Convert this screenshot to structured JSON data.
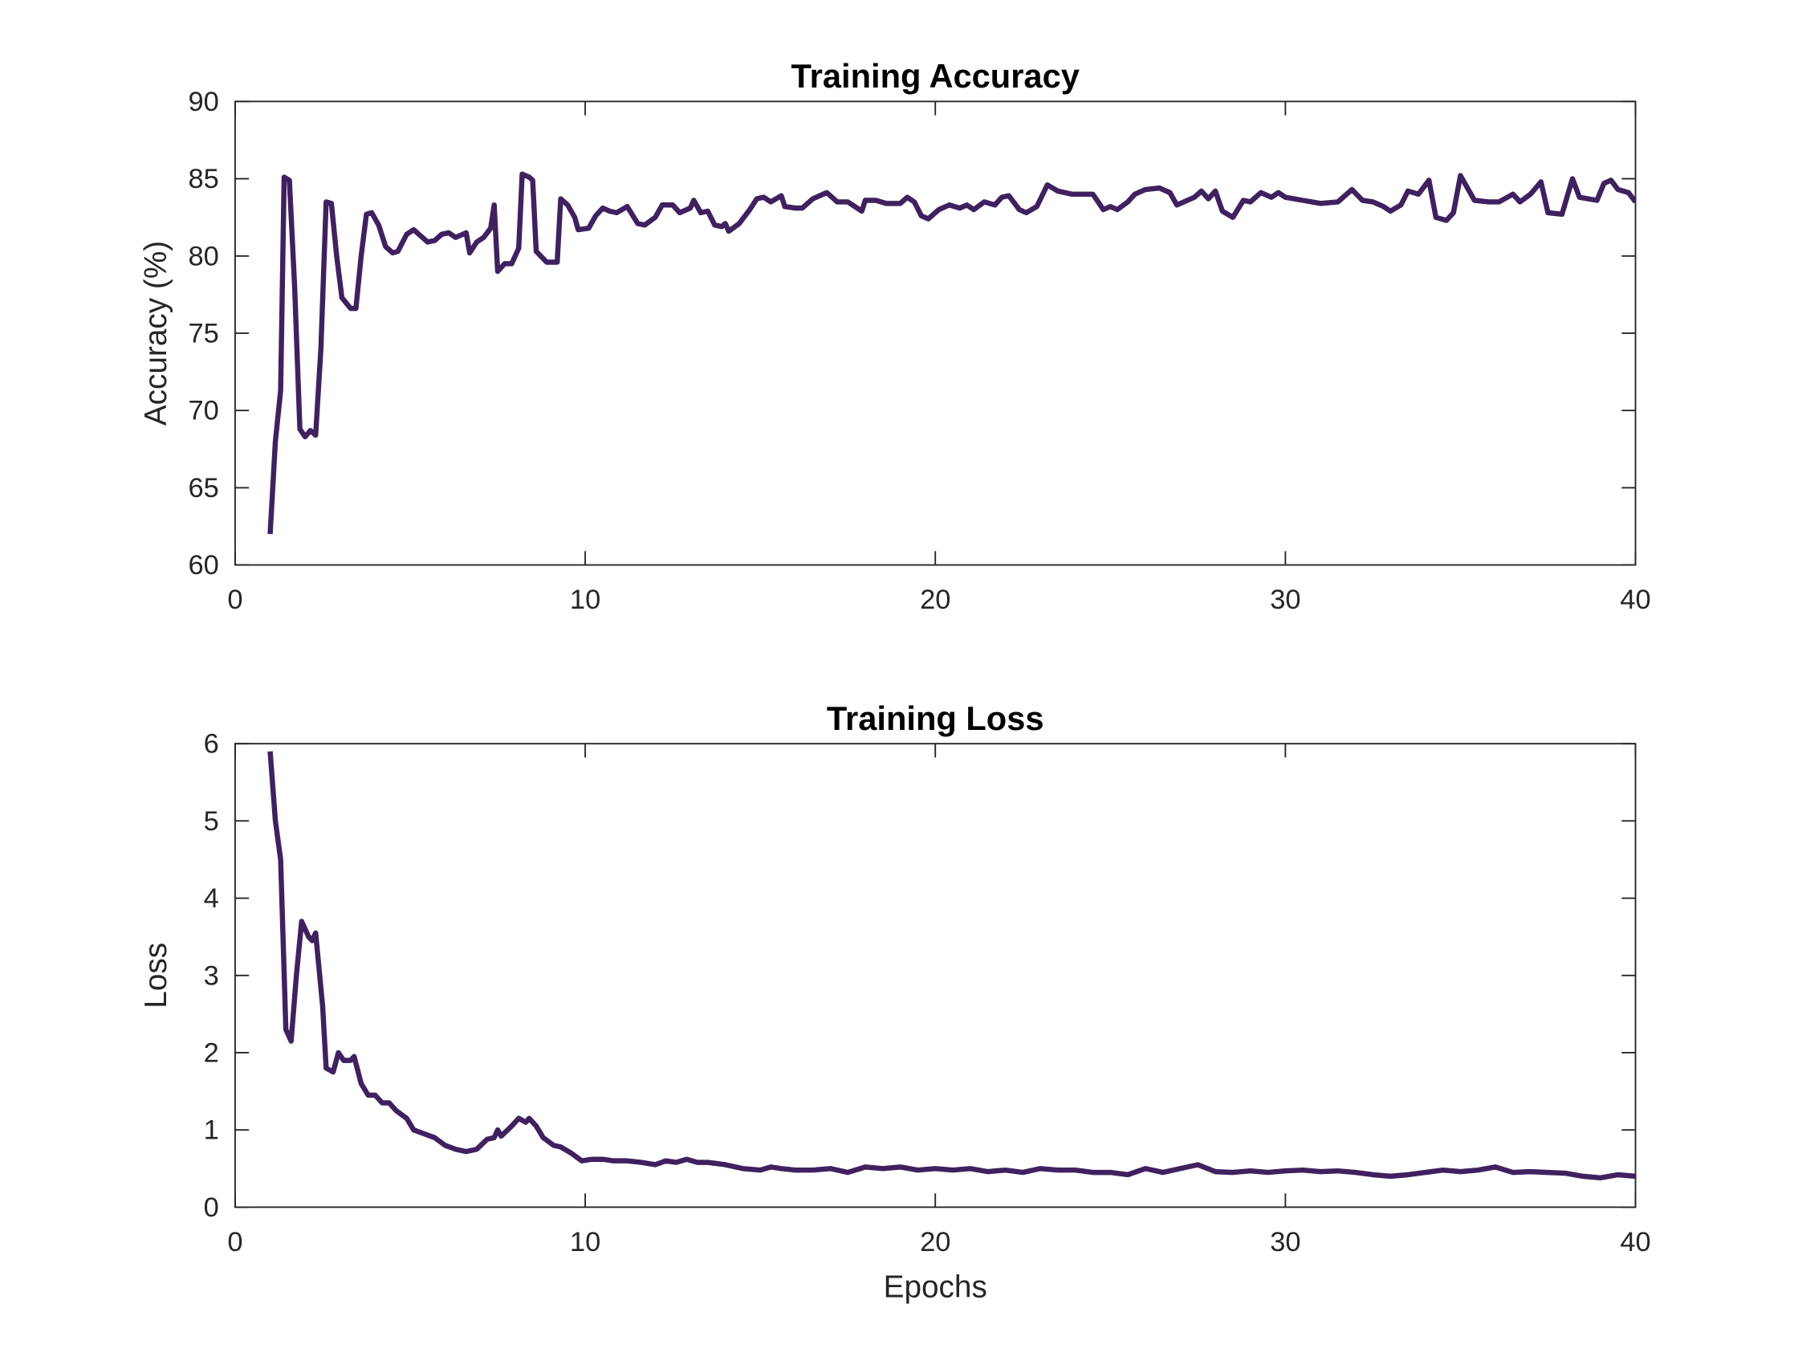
{
  "chart_data": [
    {
      "type": "line",
      "title": "Training Accuracy",
      "y_label": "Accuracy (%)",
      "xlim": [
        0,
        40
      ],
      "xticks": [
        0,
        10,
        20,
        30,
        40
      ],
      "ylim": [
        60,
        90
      ],
      "yticks": [
        60,
        65,
        70,
        75,
        80,
        85,
        90
      ],
      "series": [
        {
          "color": "#40215f",
          "x": [
            1.0,
            1.15,
            1.3,
            1.4,
            1.55,
            1.7,
            1.85,
            2.0,
            2.15,
            2.3,
            2.45,
            2.6,
            2.75,
            2.9,
            3.05,
            3.3,
            3.45,
            3.6,
            3.75,
            3.9,
            4.1,
            4.3,
            4.5,
            4.65,
            4.9,
            5.1,
            5.3,
            5.5,
            5.7,
            5.9,
            6.1,
            6.3,
            6.6,
            6.7,
            6.9,
            7.1,
            7.3,
            7.4,
            7.5,
            7.7,
            7.9,
            8.1,
            8.2,
            8.4,
            8.5,
            8.6,
            8.9,
            9.2,
            9.3,
            9.5,
            9.7,
            9.8,
            10.1,
            10.3,
            10.5,
            10.7,
            10.9,
            11.2,
            11.5,
            11.7,
            12.0,
            12.2,
            12.5,
            12.7,
            13.0,
            13.1,
            13.3,
            13.5,
            13.7,
            13.9,
            14.0,
            14.1,
            14.4,
            14.7,
            14.9,
            15.1,
            15.3,
            15.6,
            15.7,
            16.0,
            16.2,
            16.5,
            16.9,
            17.2,
            17.5,
            17.9,
            18.0,
            18.3,
            18.6,
            19.0,
            19.2,
            19.4,
            19.6,
            19.8,
            20.1,
            20.4,
            20.7,
            20.9,
            21.1,
            21.4,
            21.7,
            21.9,
            22.1,
            22.4,
            22.6,
            22.9,
            23.2,
            23.5,
            23.9,
            24.2,
            24.5,
            24.8,
            25.0,
            25.2,
            25.5,
            25.7,
            26.0,
            26.4,
            26.7,
            26.9,
            27.1,
            27.4,
            27.6,
            27.8,
            28.0,
            28.2,
            28.5,
            28.8,
            29.0,
            29.3,
            29.6,
            29.8,
            30.0,
            30.5,
            31.0,
            31.5,
            31.9,
            32.2,
            32.5,
            32.8,
            33.0,
            33.3,
            33.5,
            33.8,
            34.1,
            34.3,
            34.6,
            34.8,
            35.0,
            35.4,
            35.8,
            36.1,
            36.5,
            36.7,
            37.0,
            37.3,
            37.5,
            37.9,
            38.2,
            38.4,
            38.9,
            39.1,
            39.3,
            39.5,
            39.8,
            40.0
          ],
          "values": [
            62,
            68,
            71.3,
            85.1,
            84.9,
            78,
            68.8,
            68.3,
            68.7,
            68.4,
            74,
            83.5,
            83.4,
            80,
            77.3,
            76.6,
            76.6,
            80,
            82.7,
            82.8,
            82,
            80.6,
            80.2,
            80.3,
            81.4,
            81.7,
            81.3,
            80.9,
            81,
            81.4,
            81.5,
            81.2,
            81.5,
            80.2,
            80.9,
            81.2,
            81.8,
            83.3,
            79,
            79.5,
            79.5,
            80.5,
            85.3,
            85.1,
            84.9,
            80.3,
            79.6,
            79.6,
            83.7,
            83.3,
            82.5,
            81.7,
            81.8,
            82.6,
            83.1,
            82.9,
            82.8,
            83.2,
            82.1,
            82,
            82.5,
            83.3,
            83.3,
            82.8,
            83.1,
            83.6,
            82.8,
            82.9,
            82,
            81.9,
            82.1,
            81.6,
            82.1,
            83,
            83.7,
            83.8,
            83.5,
            83.9,
            83.2,
            83.1,
            83.1,
            83.7,
            84.1,
            83.5,
            83.5,
            82.9,
            83.6,
            83.6,
            83.4,
            83.4,
            83.8,
            83.5,
            82.6,
            82.4,
            83,
            83.3,
            83.1,
            83.3,
            83,
            83.5,
            83.3,
            83.8,
            83.9,
            83,
            82.8,
            83.2,
            84.6,
            84.2,
            84,
            84,
            84,
            83,
            83.2,
            83,
            83.5,
            84,
            84.3,
            84.4,
            84.1,
            83.3,
            83.5,
            83.8,
            84.2,
            83.7,
            84.2,
            82.9,
            82.5,
            83.6,
            83.5,
            84.1,
            83.8,
            84.1,
            83.8,
            83.6,
            83.4,
            83.5,
            84.3,
            83.6,
            83.5,
            83.2,
            82.9,
            83.3,
            84.2,
            84,
            84.9,
            82.5,
            82.3,
            82.8,
            85.2,
            83.6,
            83.5,
            83.5,
            84,
            83.5,
            84,
            84.8,
            82.8,
            82.7,
            85,
            83.8,
            83.6,
            84.7,
            84.9,
            84.3,
            84.1,
            83.5
          ]
        }
      ]
    },
    {
      "type": "line",
      "title": "Training Loss",
      "x_label": "Epochs",
      "y_label": "Loss",
      "xlim": [
        0,
        40
      ],
      "xticks": [
        0,
        10,
        20,
        30,
        40
      ],
      "ylim": [
        0,
        6
      ],
      "yticks": [
        0,
        1,
        2,
        3,
        4,
        5,
        6
      ],
      "series": [
        {
          "color": "#40215f",
          "x": [
            1.0,
            1.15,
            1.3,
            1.45,
            1.6,
            1.75,
            1.9,
            2.1,
            2.2,
            2.3,
            2.5,
            2.6,
            2.8,
            2.95,
            3.1,
            3.3,
            3.4,
            3.6,
            3.8,
            4.0,
            4.2,
            4.4,
            4.6,
            4.9,
            5.1,
            5.4,
            5.7,
            6.0,
            6.3,
            6.6,
            6.9,
            7.2,
            7.4,
            7.5,
            7.6,
            7.9,
            8.1,
            8.3,
            8.4,
            8.6,
            8.8,
            9.1,
            9.3,
            9.6,
            9.9,
            10.2,
            10.5,
            10.8,
            11.2,
            11.6,
            12.0,
            12.3,
            12.6,
            12.9,
            13.2,
            13.5,
            14.0,
            14.5,
            15.0,
            15.3,
            15.6,
            16.0,
            16.5,
            17.0,
            17.5,
            18.0,
            18.5,
            19.0,
            19.5,
            20.0,
            20.5,
            21.0,
            21.5,
            22.0,
            22.5,
            23.0,
            23.5,
            24.0,
            24.5,
            25.0,
            25.5,
            26.0,
            26.5,
            27.0,
            27.5,
            28.0,
            28.5,
            29.0,
            29.5,
            30.0,
            30.5,
            31.0,
            31.5,
            32.0,
            32.5,
            33.0,
            33.5,
            34.0,
            34.5,
            35.0,
            35.5,
            36.0,
            36.5,
            37.0,
            37.5,
            38.0,
            38.5,
            39.0,
            39.5,
            40.0
          ],
          "values": [
            5.9,
            5.0,
            4.5,
            2.3,
            2.15,
            3.0,
            3.7,
            3.5,
            3.45,
            3.55,
            2.6,
            1.8,
            1.75,
            2.0,
            1.9,
            1.9,
            1.95,
            1.6,
            1.45,
            1.45,
            1.35,
            1.35,
            1.25,
            1.15,
            1.0,
            0.95,
            0.9,
            0.8,
            0.75,
            0.72,
            0.75,
            0.88,
            0.9,
            1.0,
            0.92,
            1.05,
            1.15,
            1.1,
            1.15,
            1.05,
            0.9,
            0.8,
            0.78,
            0.7,
            0.6,
            0.62,
            0.62,
            0.6,
            0.6,
            0.58,
            0.55,
            0.6,
            0.58,
            0.62,
            0.58,
            0.58,
            0.55,
            0.5,
            0.48,
            0.52,
            0.5,
            0.48,
            0.48,
            0.5,
            0.45,
            0.52,
            0.5,
            0.52,
            0.48,
            0.5,
            0.48,
            0.5,
            0.46,
            0.48,
            0.45,
            0.5,
            0.48,
            0.48,
            0.45,
            0.45,
            0.42,
            0.5,
            0.45,
            0.5,
            0.55,
            0.46,
            0.45,
            0.47,
            0.45,
            0.47,
            0.48,
            0.46,
            0.47,
            0.45,
            0.42,
            0.4,
            0.42,
            0.45,
            0.48,
            0.46,
            0.48,
            0.52,
            0.45,
            0.46,
            0.45,
            0.44,
            0.4,
            0.38,
            0.42,
            0.4
          ]
        }
      ]
    }
  ]
}
